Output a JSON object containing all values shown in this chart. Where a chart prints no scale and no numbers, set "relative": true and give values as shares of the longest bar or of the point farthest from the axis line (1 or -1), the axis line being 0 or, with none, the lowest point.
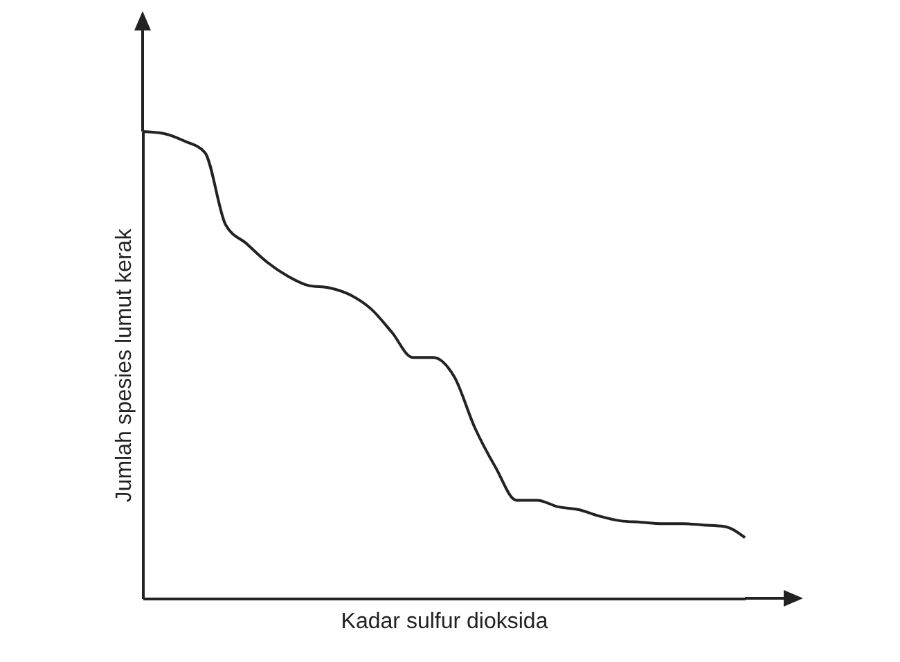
{
  "chart_data": {
    "type": "line",
    "relative": true,
    "xlabel": "Kadar sulfur dioksida",
    "ylabel": "Jumlah spesies lumut kerak",
    "categories": [
      null,
      null,
      null,
      null,
      null,
      null,
      null,
      null,
      null,
      null,
      null,
      null,
      null,
      null,
      null,
      null,
      null,
      null,
      null,
      null,
      null,
      null,
      null,
      null,
      null,
      null,
      null,
      null,
      null,
      null
    ],
    "series": [
      {
        "color": "#222222",
        "values": [
          1.0,
          0.996,
          0.98,
          0.955,
          0.8,
          0.76,
          0.72,
          0.69,
          0.67,
          0.665,
          0.65,
          0.62,
          0.57,
          0.516,
          0.516,
          0.475,
          0.365,
          0.28,
          0.21,
          0.21,
          0.196,
          0.19,
          0.176,
          0.166,
          0.163,
          0.16,
          0.16,
          0.157,
          0.154,
          0.13
        ]
      }
    ],
    "grid": false,
    "marker": "none",
    "line_style": "solid"
  }
}
